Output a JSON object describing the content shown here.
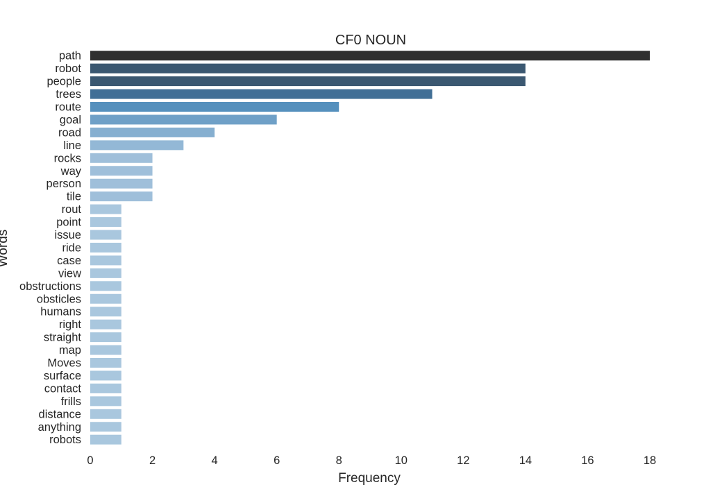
{
  "chart_data": {
    "type": "bar",
    "orientation": "horizontal",
    "title": "CF0 NOUN",
    "xlabel": "Frequency",
    "ylabel": "Words",
    "xlim": [
      0,
      18
    ],
    "xticks": [
      0,
      2,
      4,
      6,
      8,
      10,
      12,
      14,
      16,
      18
    ],
    "grid": false,
    "legend": "none",
    "categories": [
      "path",
      "robot",
      "people",
      "trees",
      "route",
      "goal",
      "road",
      "line",
      "rocks",
      "way",
      "person",
      "tile",
      "rout",
      "point",
      "issue",
      "ride",
      "case",
      "view",
      "obstructions",
      "obsticles",
      "humans",
      "right",
      "straight",
      "map",
      "Moves",
      "surface",
      "contact",
      "frills",
      "distance",
      "anything",
      "robots"
    ],
    "values": [
      18,
      14,
      14,
      11,
      8,
      6,
      4,
      3,
      2,
      2,
      2,
      2,
      1,
      1,
      1,
      1,
      1,
      1,
      1,
      1,
      1,
      1,
      1,
      1,
      1,
      1,
      1,
      1,
      1,
      1,
      1
    ],
    "colors": {
      "18": "#2f2f2f",
      "14": "#3b5871",
      "11": "#416f96",
      "8": "#5590bd",
      "6": "#6fa0c7",
      "4": "#86afd0",
      "3": "#93b8d6",
      "2": "#9fbfda",
      "1": "#a9c7de"
    }
  }
}
